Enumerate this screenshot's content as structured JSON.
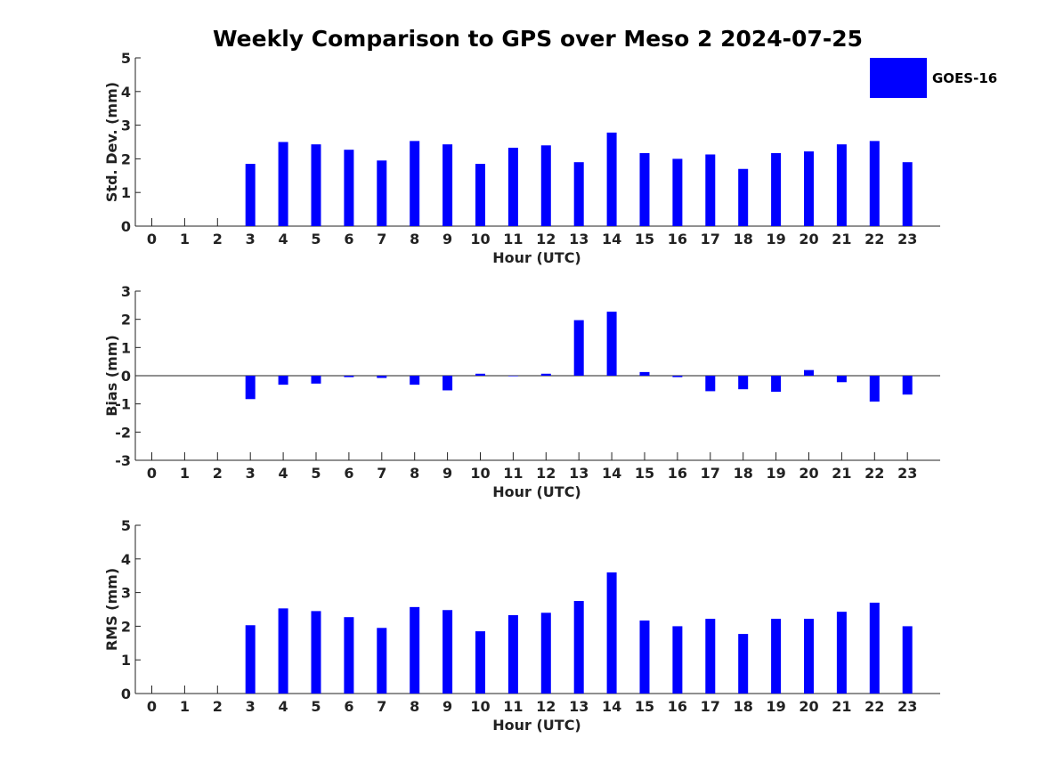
{
  "chart_data": {
    "type": "bar",
    "title": "Weekly Comparison to GPS over Meso 2 2024-07-25",
    "legend": {
      "placement": "top-right",
      "entries": [
        {
          "name": "GOES-16",
          "color": "#0000ff"
        }
      ]
    },
    "bar_color": "#0000ff",
    "categories": [
      "0",
      "1",
      "2",
      "3",
      "4",
      "5",
      "6",
      "7",
      "8",
      "9",
      "10",
      "11",
      "12",
      "13",
      "14",
      "15",
      "16",
      "17",
      "18",
      "19",
      "20",
      "21",
      "22",
      "23"
    ],
    "panels": [
      {
        "id": "std",
        "ylabel": "Std. Dev. (mm)",
        "xlabel": "Hour (UTC)",
        "ylim": [
          0,
          5
        ],
        "yticks": [
          "0",
          "1",
          "2",
          "3",
          "4",
          "5"
        ],
        "grid": false,
        "values": [
          null,
          null,
          null,
          1.85,
          2.5,
          2.43,
          2.27,
          1.95,
          2.53,
          2.43,
          1.85,
          2.33,
          2.4,
          1.9,
          2.78,
          2.17,
          2.0,
          2.13,
          1.7,
          2.17,
          2.22,
          2.43,
          2.53,
          1.9
        ]
      },
      {
        "id": "bias",
        "ylabel": "Bias (mm)",
        "xlabel": "Hour (UTC)",
        "ylim": [
          -3,
          3
        ],
        "yticks": [
          "-3",
          "-2",
          "-1",
          "0",
          "1",
          "2",
          "3"
        ],
        "grid": false,
        "zero_line": true,
        "values": [
          null,
          null,
          null,
          -0.83,
          -0.32,
          -0.28,
          -0.05,
          -0.08,
          -0.32,
          -0.52,
          0.07,
          0.0,
          0.07,
          1.97,
          2.27,
          0.13,
          -0.05,
          -0.55,
          -0.48,
          -0.57,
          0.2,
          -0.23,
          -0.92,
          -0.67
        ]
      },
      {
        "id": "rms",
        "ylabel": "RMS (mm)",
        "xlabel": "Hour (UTC)",
        "ylim": [
          0,
          5
        ],
        "yticks": [
          "0",
          "1",
          "2",
          "3",
          "4",
          "5"
        ],
        "grid": false,
        "values": [
          null,
          null,
          null,
          2.03,
          2.53,
          2.45,
          2.27,
          1.95,
          2.57,
          2.48,
          1.85,
          2.33,
          2.4,
          2.75,
          3.6,
          2.17,
          2.0,
          2.22,
          1.77,
          2.22,
          2.22,
          2.43,
          2.7,
          2.0
        ]
      }
    ]
  }
}
